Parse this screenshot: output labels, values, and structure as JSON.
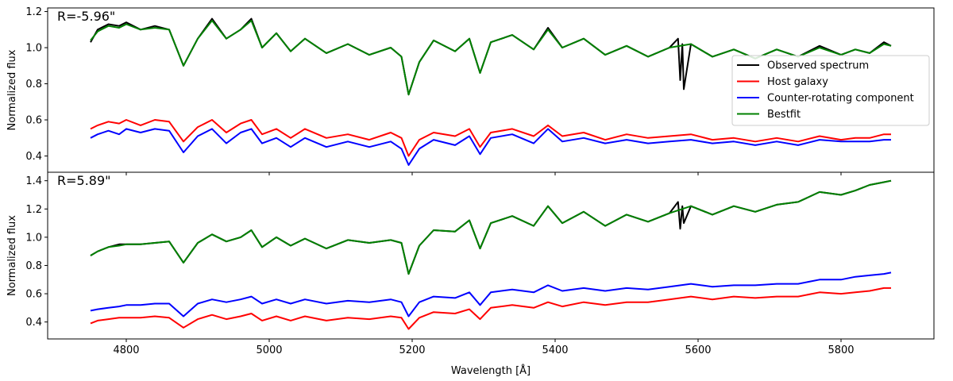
{
  "chart_data": {
    "type": "line",
    "xlabel": "Wavelength [Å]",
    "xlim": [
      4690,
      5930
    ],
    "xticks": [
      4800,
      5000,
      5200,
      5400,
      5600,
      5800
    ],
    "legend": {
      "placement": "right-center of top panel",
      "entries": [
        "Observed spectrum",
        "Host galaxy",
        "Counter-rotating component",
        "Bestfit"
      ]
    },
    "panels": [
      {
        "label": "R=-5.96\"",
        "ylabel": "Normalized flux",
        "ylim": [
          0.31,
          1.22
        ],
        "yticks": [
          0.4,
          0.6,
          0.8,
          1.0,
          1.2
        ],
        "series": [
          {
            "name": "Observed spectrum",
            "color": "#000000",
            "x": [
              4750,
              4760,
              4775,
              4790,
              4800,
              4820,
              4840,
              4860,
              4880,
              4900,
              4920,
              4940,
              4960,
              4975,
              4990,
              5010,
              5030,
              5050,
              5080,
              5110,
              5140,
              5170,
              5185,
              5195,
              5210,
              5230,
              5260,
              5280,
              5295,
              5310,
              5340,
              5370,
              5390,
              5410,
              5440,
              5470,
              5500,
              5530,
              5560,
              5572,
              5575,
              5578,
              5580,
              5590,
              5620,
              5650,
              5680,
              5710,
              5740,
              5770,
              5800,
              5820,
              5840,
              5860,
              5870
            ],
            "y": [
              1.03,
              1.1,
              1.13,
              1.12,
              1.14,
              1.1,
              1.12,
              1.1,
              0.9,
              1.05,
              1.16,
              1.05,
              1.1,
              1.16,
              1.0,
              1.08,
              0.98,
              1.05,
              0.97,
              1.02,
              0.96,
              1.0,
              0.95,
              0.74,
              0.92,
              1.04,
              0.98,
              1.05,
              0.86,
              1.03,
              1.07,
              0.99,
              1.11,
              1.0,
              1.05,
              0.96,
              1.01,
              0.95,
              1.0,
              1.05,
              0.82,
              1.02,
              0.77,
              1.02,
              0.95,
              0.99,
              0.94,
              0.99,
              0.95,
              1.01,
              0.96,
              0.99,
              0.97,
              1.03,
              1.01
            ]
          },
          {
            "name": "Host galaxy",
            "color": "#ff0000",
            "x": [
              4750,
              4760,
              4775,
              4790,
              4800,
              4820,
              4840,
              4860,
              4880,
              4900,
              4920,
              4940,
              4960,
              4975,
              4990,
              5010,
              5030,
              5050,
              5080,
              5110,
              5140,
              5170,
              5185,
              5195,
              5210,
              5230,
              5260,
              5280,
              5295,
              5310,
              5340,
              5370,
              5390,
              5410,
              5440,
              5470,
              5500,
              5530,
              5560,
              5590,
              5620,
              5650,
              5680,
              5710,
              5740,
              5770,
              5800,
              5820,
              5840,
              5860,
              5870
            ],
            "y": [
              0.55,
              0.57,
              0.59,
              0.58,
              0.6,
              0.57,
              0.6,
              0.59,
              0.48,
              0.56,
              0.6,
              0.53,
              0.58,
              0.6,
              0.52,
              0.55,
              0.5,
              0.55,
              0.5,
              0.52,
              0.49,
              0.53,
              0.5,
              0.4,
              0.49,
              0.53,
              0.51,
              0.55,
              0.45,
              0.53,
              0.55,
              0.51,
              0.57,
              0.51,
              0.53,
              0.49,
              0.52,
              0.5,
              0.51,
              0.52,
              0.49,
              0.5,
              0.48,
              0.5,
              0.48,
              0.51,
              0.49,
              0.5,
              0.5,
              0.52,
              0.52
            ]
          },
          {
            "name": "Counter-rotating component",
            "color": "#0000ff",
            "x": [
              4750,
              4760,
              4775,
              4790,
              4800,
              4820,
              4840,
              4860,
              4880,
              4900,
              4920,
              4940,
              4960,
              4975,
              4990,
              5010,
              5030,
              5050,
              5080,
              5110,
              5140,
              5170,
              5185,
              5195,
              5210,
              5230,
              5260,
              5280,
              5295,
              5310,
              5340,
              5370,
              5390,
              5410,
              5440,
              5470,
              5500,
              5530,
              5560,
              5590,
              5620,
              5650,
              5680,
              5710,
              5740,
              5770,
              5800,
              5820,
              5840,
              5860,
              5870
            ],
            "y": [
              0.5,
              0.52,
              0.54,
              0.52,
              0.55,
              0.53,
              0.55,
              0.54,
              0.42,
              0.51,
              0.55,
              0.47,
              0.53,
              0.55,
              0.47,
              0.5,
              0.45,
              0.5,
              0.45,
              0.48,
              0.45,
              0.48,
              0.44,
              0.35,
              0.44,
              0.49,
              0.46,
              0.51,
              0.41,
              0.5,
              0.52,
              0.47,
              0.55,
              0.48,
              0.5,
              0.47,
              0.49,
              0.47,
              0.48,
              0.49,
              0.47,
              0.48,
              0.46,
              0.48,
              0.46,
              0.49,
              0.48,
              0.48,
              0.48,
              0.49,
              0.49
            ]
          },
          {
            "name": "Bestfit",
            "color": "#008000",
            "x": [
              4750,
              4760,
              4775,
              4790,
              4800,
              4820,
              4840,
              4860,
              4880,
              4900,
              4920,
              4940,
              4960,
              4975,
              4990,
              5010,
              5030,
              5050,
              5080,
              5110,
              5140,
              5170,
              5185,
              5195,
              5210,
              5230,
              5260,
              5280,
              5295,
              5310,
              5340,
              5370,
              5390,
              5410,
              5440,
              5470,
              5500,
              5530,
              5560,
              5590,
              5620,
              5650,
              5680,
              5710,
              5740,
              5770,
              5800,
              5820,
              5840,
              5860,
              5870
            ],
            "y": [
              1.04,
              1.09,
              1.12,
              1.11,
              1.13,
              1.1,
              1.11,
              1.1,
              0.9,
              1.05,
              1.15,
              1.05,
              1.1,
              1.15,
              1.0,
              1.08,
              0.98,
              1.05,
              0.97,
              1.02,
              0.96,
              1.0,
              0.95,
              0.74,
              0.92,
              1.04,
              0.98,
              1.05,
              0.86,
              1.03,
              1.07,
              0.99,
              1.1,
              1.0,
              1.05,
              0.96,
              1.01,
              0.95,
              1.0,
              1.02,
              0.95,
              0.99,
              0.94,
              0.99,
              0.95,
              1.0,
              0.96,
              0.99,
              0.97,
              1.02,
              1.01
            ]
          }
        ]
      },
      {
        "label": "R=5.89\"",
        "ylabel": "Normalized flux",
        "ylim": [
          0.28,
          1.46
        ],
        "yticks": [
          0.4,
          0.6,
          0.8,
          1.0,
          1.2,
          1.4
        ],
        "series": [
          {
            "name": "Observed spectrum",
            "color": "#000000",
            "x": [
              4750,
              4760,
              4775,
              4790,
              4800,
              4820,
              4840,
              4860,
              4880,
              4900,
              4920,
              4940,
              4960,
              4975,
              4990,
              5010,
              5030,
              5050,
              5080,
              5110,
              5140,
              5170,
              5185,
              5195,
              5210,
              5230,
              5260,
              5280,
              5295,
              5310,
              5340,
              5370,
              5390,
              5410,
              5440,
              5470,
              5500,
              5530,
              5560,
              5572,
              5575,
              5578,
              5580,
              5590,
              5620,
              5650,
              5680,
              5710,
              5740,
              5770,
              5800,
              5820,
              5840,
              5860,
              5870
            ],
            "y": [
              0.87,
              0.9,
              0.93,
              0.95,
              0.95,
              0.95,
              0.96,
              0.97,
              0.82,
              0.96,
              1.02,
              0.97,
              1.0,
              1.05,
              0.93,
              1.0,
              0.94,
              0.99,
              0.92,
              0.98,
              0.96,
              0.98,
              0.96,
              0.74,
              0.94,
              1.05,
              1.04,
              1.12,
              0.92,
              1.1,
              1.15,
              1.08,
              1.22,
              1.1,
              1.18,
              1.08,
              1.16,
              1.11,
              1.17,
              1.25,
              1.06,
              1.22,
              1.1,
              1.22,
              1.16,
              1.22,
              1.18,
              1.23,
              1.25,
              1.32,
              1.3,
              1.33,
              1.37,
              1.39,
              1.4
            ]
          },
          {
            "name": "Host galaxy",
            "color": "#ff0000",
            "x": [
              4750,
              4760,
              4775,
              4790,
              4800,
              4820,
              4840,
              4860,
              4880,
              4900,
              4920,
              4940,
              4960,
              4975,
              4990,
              5010,
              5030,
              5050,
              5080,
              5110,
              5140,
              5170,
              5185,
              5195,
              5210,
              5230,
              5260,
              5280,
              5295,
              5310,
              5340,
              5370,
              5390,
              5410,
              5440,
              5470,
              5500,
              5530,
              5560,
              5590,
              5620,
              5650,
              5680,
              5710,
              5740,
              5770,
              5800,
              5820,
              5840,
              5860,
              5870
            ],
            "y": [
              0.39,
              0.41,
              0.42,
              0.43,
              0.43,
              0.43,
              0.44,
              0.43,
              0.36,
              0.42,
              0.45,
              0.42,
              0.44,
              0.46,
              0.41,
              0.44,
              0.41,
              0.44,
              0.41,
              0.43,
              0.42,
              0.44,
              0.43,
              0.35,
              0.43,
              0.47,
              0.46,
              0.49,
              0.42,
              0.5,
              0.52,
              0.5,
              0.54,
              0.51,
              0.54,
              0.52,
              0.54,
              0.54,
              0.56,
              0.58,
              0.56,
              0.58,
              0.57,
              0.58,
              0.58,
              0.61,
              0.6,
              0.61,
              0.62,
              0.64,
              0.64
            ]
          },
          {
            "name": "Counter-rotating component",
            "color": "#0000ff",
            "x": [
              4750,
              4760,
              4775,
              4790,
              4800,
              4820,
              4840,
              4860,
              4880,
              4900,
              4920,
              4940,
              4960,
              4975,
              4990,
              5010,
              5030,
              5050,
              5080,
              5110,
              5140,
              5170,
              5185,
              5195,
              5210,
              5230,
              5260,
              5280,
              5295,
              5310,
              5340,
              5370,
              5390,
              5410,
              5440,
              5470,
              5500,
              5530,
              5560,
              5590,
              5620,
              5650,
              5680,
              5710,
              5740,
              5770,
              5800,
              5820,
              5840,
              5860,
              5870
            ],
            "y": [
              0.48,
              0.49,
              0.5,
              0.51,
              0.52,
              0.52,
              0.53,
              0.53,
              0.44,
              0.53,
              0.56,
              0.54,
              0.56,
              0.58,
              0.53,
              0.56,
              0.53,
              0.56,
              0.53,
              0.55,
              0.54,
              0.56,
              0.54,
              0.44,
              0.54,
              0.58,
              0.57,
              0.61,
              0.52,
              0.61,
              0.63,
              0.61,
              0.66,
              0.62,
              0.64,
              0.62,
              0.64,
              0.63,
              0.65,
              0.67,
              0.65,
              0.66,
              0.66,
              0.67,
              0.67,
              0.7,
              0.7,
              0.72,
              0.73,
              0.74,
              0.75
            ]
          },
          {
            "name": "Bestfit",
            "color": "#008000",
            "x": [
              4750,
              4760,
              4775,
              4790,
              4800,
              4820,
              4840,
              4860,
              4880,
              4900,
              4920,
              4940,
              4960,
              4975,
              4990,
              5010,
              5030,
              5050,
              5080,
              5110,
              5140,
              5170,
              5185,
              5195,
              5210,
              5230,
              5260,
              5280,
              5295,
              5310,
              5340,
              5370,
              5390,
              5410,
              5440,
              5470,
              5500,
              5530,
              5560,
              5590,
              5620,
              5650,
              5680,
              5710,
              5740,
              5770,
              5800,
              5820,
              5840,
              5860,
              5870
            ],
            "y": [
              0.87,
              0.9,
              0.93,
              0.94,
              0.95,
              0.95,
              0.96,
              0.97,
              0.82,
              0.96,
              1.02,
              0.97,
              1.0,
              1.05,
              0.93,
              1.0,
              0.94,
              0.99,
              0.92,
              0.98,
              0.96,
              0.98,
              0.96,
              0.74,
              0.94,
              1.05,
              1.04,
              1.12,
              0.92,
              1.1,
              1.15,
              1.08,
              1.22,
              1.1,
              1.18,
              1.08,
              1.16,
              1.11,
              1.17,
              1.22,
              1.16,
              1.22,
              1.18,
              1.23,
              1.25,
              1.32,
              1.3,
              1.33,
              1.37,
              1.39,
              1.4
            ]
          }
        ]
      }
    ]
  }
}
